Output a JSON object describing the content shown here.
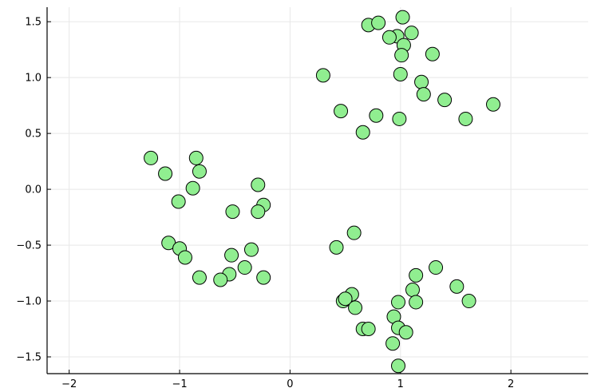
{
  "chart_data": {
    "type": "scatter",
    "title": "",
    "xlabel": "",
    "ylabel": "",
    "xlim": [
      -2.2,
      2.7
    ],
    "ylim": [
      -1.65,
      1.63
    ],
    "xticks": [
      -2,
      -1,
      0,
      1,
      2
    ],
    "xtick_labels": [
      "−2",
      "−1",
      "0",
      "1",
      "2"
    ],
    "yticks": [
      -1.5,
      -1.0,
      -0.5,
      0.0,
      0.5,
      1.0,
      1.5
    ],
    "ytick_labels": [
      "−1.5",
      "−1.0",
      "−0.5",
      "0.0",
      "0.5",
      "1.0",
      "1.5"
    ],
    "grid": true,
    "legend": "none",
    "marker_color": "#90ee90",
    "marker_edge_color": "#000000",
    "series": [
      {
        "points": [
          [
            0.71,
            1.47
          ],
          [
            0.8,
            1.49
          ],
          [
            1.02,
            1.54
          ],
          [
            0.97,
            1.37
          ],
          [
            0.9,
            1.36
          ],
          [
            1.1,
            1.4
          ],
          [
            1.03,
            1.29
          ],
          [
            1.01,
            1.2
          ],
          [
            1.29,
            1.21
          ],
          [
            0.3,
            1.02
          ],
          [
            1.0,
            1.03
          ],
          [
            1.19,
            0.96
          ],
          [
            1.21,
            0.85
          ],
          [
            1.4,
            0.8
          ],
          [
            0.46,
            0.7
          ],
          [
            0.78,
            0.66
          ],
          [
            0.99,
            0.63
          ],
          [
            1.59,
            0.63
          ],
          [
            0.66,
            0.51
          ],
          [
            1.84,
            0.76
          ],
          [
            -1.26,
            0.28
          ],
          [
            -0.85,
            0.28
          ],
          [
            -1.13,
            0.14
          ],
          [
            -0.82,
            0.16
          ],
          [
            -0.88,
            0.01
          ],
          [
            -1.01,
            -0.11
          ],
          [
            -0.29,
            0.04
          ],
          [
            -0.24,
            -0.14
          ],
          [
            -0.52,
            -0.2
          ],
          [
            -0.29,
            -0.2
          ],
          [
            -1.1,
            -0.48
          ],
          [
            -1.0,
            -0.53
          ],
          [
            -0.95,
            -0.61
          ],
          [
            -0.53,
            -0.59
          ],
          [
            -0.35,
            -0.54
          ],
          [
            -0.41,
            -0.7
          ],
          [
            -0.55,
            -0.76
          ],
          [
            -0.63,
            -0.81
          ],
          [
            -0.82,
            -0.79
          ],
          [
            -0.24,
            -0.79
          ],
          [
            0.42,
            -0.52
          ],
          [
            0.58,
            -0.39
          ],
          [
            1.32,
            -0.7
          ],
          [
            1.14,
            -0.77
          ],
          [
            1.11,
            -0.9
          ],
          [
            1.51,
            -0.87
          ],
          [
            1.62,
            -1.0
          ],
          [
            0.56,
            -0.94
          ],
          [
            0.48,
            -1.0
          ],
          [
            0.5,
            -0.98
          ],
          [
            0.59,
            -1.06
          ],
          [
            0.98,
            -1.01
          ],
          [
            1.14,
            -1.01
          ],
          [
            0.94,
            -1.14
          ],
          [
            0.98,
            -1.24
          ],
          [
            0.66,
            -1.25
          ],
          [
            0.71,
            -1.25
          ],
          [
            1.05,
            -1.28
          ],
          [
            0.93,
            -1.38
          ],
          [
            0.98,
            -1.58
          ]
        ]
      }
    ]
  }
}
